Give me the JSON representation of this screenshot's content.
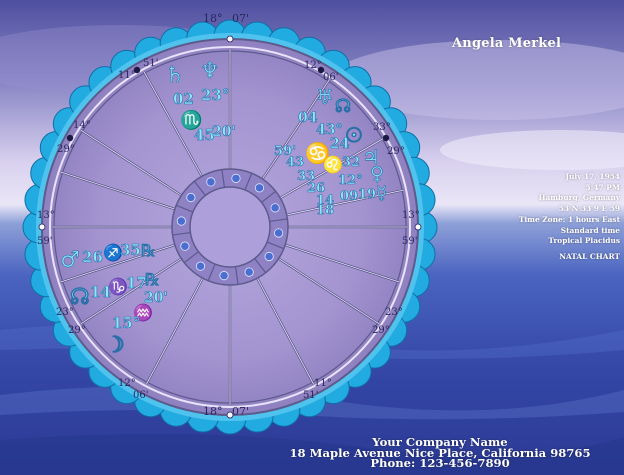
{
  "chart_owner": "Angela Merkel",
  "birth": {
    "date": "July 17, 1954",
    "time": "5:47 PM",
    "place": "Hamburg, Germany",
    "coordinates": "53 N 33    9 E 59",
    "time_zone": "Time Zone: 1 hours East",
    "time_type": "Standard time",
    "house_system": "Tropical Placidus",
    "chart_type": "NATAL CHART"
  },
  "cusp_degrees": {
    "top": "18°",
    "top_minutes": "07'",
    "upper_left_deg": "11°",
    "upper_left_min": "51'",
    "upper_right_deg": "12°",
    "upper_right_min": "06'",
    "left_upper_deg": "14°",
    "left_upper_min": "29°",
    "right_upper_deg": "33°",
    "right_upper_min": "29°",
    "left_mid_deg": "13°",
    "left_mid_min": "59'",
    "right_mid_deg": "13°",
    "right_mid_min": "59'",
    "left_lower_deg": "23°",
    "left_lower_min": "29°",
    "right_lower_deg": "23°",
    "right_lower_min": "29°",
    "lower_left_deg": "12°",
    "lower_left_min": "06'",
    "lower_right_deg": "11°",
    "lower_right_min": "51'",
    "bottom": "18°",
    "bottom_minutes": "07'"
  },
  "planet_labels": {
    "upper_02": "02",
    "upper_23": "23°",
    "upper_45": "45",
    "upper_20": "20'",
    "right_04": "04",
    "right_43": "43°",
    "right_24": "24",
    "right_59": "59'",
    "right_43b": "43",
    "right_33": "33",
    "right_32": "32",
    "right_26": "26",
    "right_12": "12°",
    "right_14": "14",
    "right_18": "18",
    "right_09": "09",
    "right_19": "19",
    "left_26": "26",
    "left_35": "35",
    "left_14": "14",
    "left_17": "17",
    "left_20": "20'",
    "left_15": "15°"
  },
  "company": {
    "name": "Your Company Name",
    "address": "18 Maple Avenue   Nice Place, California 98765",
    "phone": "Phone: 123-456-7890"
  },
  "colors": {
    "sky_top": "#5b5aa8",
    "sky_mid": "#c9bde6",
    "sea": "#3e55b3",
    "wheel_fill": "#a99bd3",
    "scallop": "#1fa8dd",
    "glyph": "#7fe3ff",
    "ring": "#5d5a8c"
  }
}
